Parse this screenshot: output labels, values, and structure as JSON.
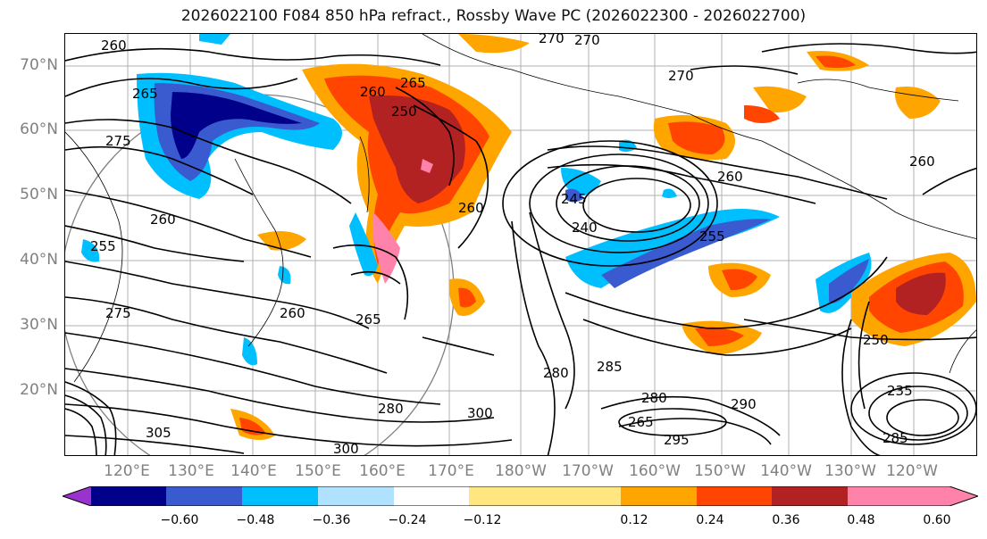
{
  "title": "2026022100 F084 850 hPa refract., Rossby Wave PC (2026022300 - 2026022700)",
  "lat_labels": [
    "70°N",
    "60°N",
    "50°N",
    "40°N",
    "30°N",
    "20°N"
  ],
  "lon_labels": [
    "120°E",
    "130°E",
    "140°E",
    "150°E",
    "160°E",
    "170°E",
    "180°W",
    "170°W",
    "160°W",
    "150°W",
    "140°W",
    "130°W",
    "120°W"
  ],
  "contour_labels": [
    "260",
    "265",
    "270",
    "275",
    "260",
    "255",
    "250",
    "265",
    "260",
    "260",
    "245",
    "240",
    "260",
    "270",
    "270",
    "255",
    "260",
    "265",
    "275",
    "280",
    "285",
    "290",
    "295",
    "300",
    "305",
    "300",
    "280",
    "285",
    "250",
    "235",
    "265",
    "260",
    "280"
  ],
  "colorbar": {
    "tick_labels": [
      "−0.60",
      "−0.48",
      "−0.36",
      "−0.24",
      "−0.12",
      "0.12",
      "0.24",
      "0.36",
      "0.48",
      "0.60"
    ],
    "colors": [
      "#9a32cd",
      "#00008b",
      "#3a5bd0",
      "#00bfff",
      "#b0e2ff",
      "#ffffff",
      "#ffe680",
      "#ffa500",
      "#ff4500",
      "#b22222",
      "#ff82ab"
    ]
  }
}
